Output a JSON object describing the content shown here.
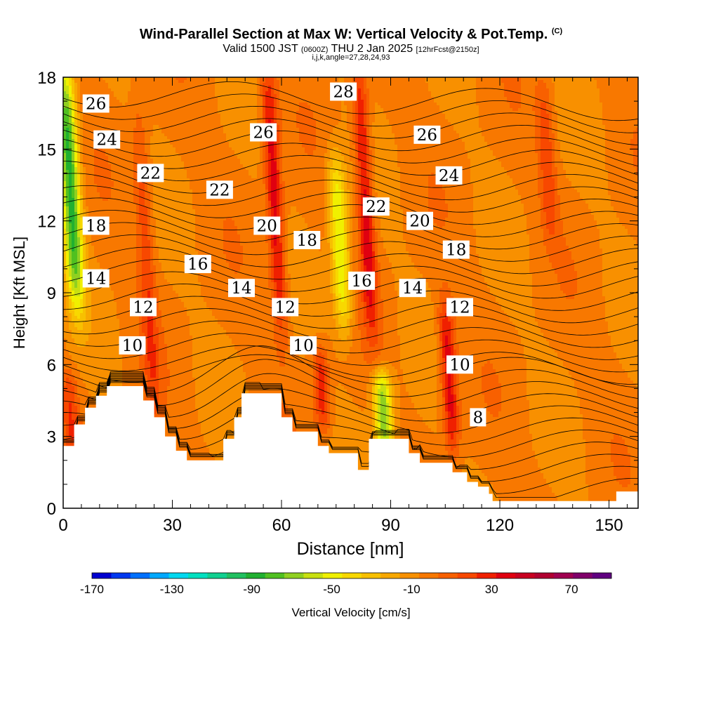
{
  "titles": {
    "main": "Wind-Parallel Section at Max W: Vertical Velocity & Pot.Temp.",
    "main_tag": "(C)",
    "valid_prefix": "Valid 1500 JST",
    "valid_zulu": "(0600Z)",
    "valid_date": "THU 2 Jan 2025",
    "forecast": "[12hrFcst@2150z]",
    "indices": "i,j,k,angle=27,28,24,93"
  },
  "chart_data": {
    "type": "heatmap",
    "title": "Wind-Parallel Section at Max W: Vertical Velocity & Pot.Temp.",
    "xlabel": "Distance [nm]",
    "ylabel": "Height [Kft MSL]",
    "xlim": [
      0,
      158
    ],
    "ylim": [
      0,
      18
    ],
    "xticks": [
      0,
      30,
      60,
      90,
      120,
      150
    ],
    "yticks": [
      0,
      3,
      6,
      9,
      12,
      15,
      18
    ],
    "colorbar": {
      "label": "Vertical Velocity [cm/s]",
      "tick_labels": [
        -170,
        -130,
        -90,
        -50,
        -10,
        30,
        70
      ],
      "bins": [
        -170,
        -160,
        -150,
        -140,
        -130,
        -120,
        -110,
        -100,
        -90,
        -80,
        -70,
        -60,
        -50,
        -40,
        -30,
        -20,
        -10,
        0,
        10,
        20,
        30,
        40,
        50,
        60,
        70,
        80,
        90
      ],
      "colors": [
        "#0000d0",
        "#0038f0",
        "#0070ff",
        "#00a8ff",
        "#00d8f0",
        "#00e0c0",
        "#10d090",
        "#20c060",
        "#20b030",
        "#50c020",
        "#90d020",
        "#c8e010",
        "#f0f000",
        "#f8d800",
        "#f8c000",
        "#f8a800",
        "#f89000",
        "#f87800",
        "#f86000",
        "#f84800",
        "#f02000",
        "#e00010",
        "#c80020",
        "#b00030",
        "#a00050",
        "#80006a",
        "#600080"
      ]
    },
    "contour_field": "Potential Temperature (C)",
    "contour_labels": [
      {
        "value": "26",
        "x": 9,
        "y": 16.9,
        "angle": 0
      },
      {
        "value": "24",
        "x": 12,
        "y": 15.4,
        "angle": 0
      },
      {
        "value": "22",
        "x": 24,
        "y": 14.0,
        "angle": 0
      },
      {
        "value": "22",
        "x": 43,
        "y": 13.3,
        "angle": 0
      },
      {
        "value": "26",
        "x": 55,
        "y": 15.7,
        "angle": 0
      },
      {
        "value": "28",
        "x": 77,
        "y": 17.4,
        "angle": 0
      },
      {
        "value": "26",
        "x": 100,
        "y": 15.6,
        "angle": 0
      },
      {
        "value": "24",
        "x": 106,
        "y": 13.9,
        "angle": 0
      },
      {
        "value": "22",
        "x": 86,
        "y": 12.6,
        "angle": 0
      },
      {
        "value": "20",
        "x": 56,
        "y": 11.8,
        "angle": 0
      },
      {
        "value": "20",
        "x": 98,
        "y": 12.0,
        "angle": 0
      },
      {
        "value": "18",
        "x": 9,
        "y": 11.8,
        "angle": 0
      },
      {
        "value": "18",
        "x": 67,
        "y": 11.2,
        "angle": 0
      },
      {
        "value": "18",
        "x": 108,
        "y": 10.8,
        "angle": 0
      },
      {
        "value": "16",
        "x": 37,
        "y": 10.2,
        "angle": 0
      },
      {
        "value": "16",
        "x": 82,
        "y": 9.5,
        "angle": 0
      },
      {
        "value": "14",
        "x": 9,
        "y": 9.6,
        "angle": 0
      },
      {
        "value": "14",
        "x": 49,
        "y": 9.2,
        "angle": 0
      },
      {
        "value": "14",
        "x": 96,
        "y": 9.2,
        "angle": 0
      },
      {
        "value": "12",
        "x": 22,
        "y": 8.4,
        "angle": 0
      },
      {
        "value": "12",
        "x": 61,
        "y": 8.4,
        "angle": 0
      },
      {
        "value": "12",
        "x": 109,
        "y": 8.4,
        "angle": 0
      },
      {
        "value": "10",
        "x": 19,
        "y": 6.8,
        "angle": 0
      },
      {
        "value": "10",
        "x": 66,
        "y": 6.8,
        "angle": 0
      },
      {
        "value": "10",
        "x": 109,
        "y": 6.0,
        "angle": 0
      },
      {
        "value": "8",
        "x": 114,
        "y": 3.8,
        "angle": 0
      }
    ],
    "velocity_features": [
      {
        "kind": "updraft",
        "x": 58,
        "y0": 8,
        "y1": 18,
        "peak_cm_s": 45
      },
      {
        "kind": "updraft",
        "x": 83,
        "y0": 8,
        "y1": 18,
        "peak_cm_s": 45
      },
      {
        "kind": "updraft",
        "x": 106,
        "y0": 3,
        "y1": 8,
        "peak_cm_s": 45
      },
      {
        "kind": "updraft",
        "x": 71,
        "y0": 4,
        "y1": 6,
        "peak_cm_s": 35
      },
      {
        "kind": "updraft",
        "x": 23,
        "y0": 4,
        "y1": 16,
        "peak_cm_s": 25
      },
      {
        "kind": "updraft",
        "x": 133,
        "y0": 12,
        "y1": 17,
        "peak_cm_s": 25
      },
      {
        "kind": "updraft",
        "x": 2,
        "y0": 3,
        "y1": 5,
        "peak_cm_s": 25
      },
      {
        "kind": "downdraft",
        "x": 2,
        "y0": 9,
        "y1": 18,
        "peak_cm_s": -85
      },
      {
        "kind": "downdraft",
        "x": 76,
        "y0": 8,
        "y1": 14,
        "peak_cm_s": -55
      },
      {
        "kind": "downdraft",
        "x": 88,
        "y0": 3,
        "y1": 5,
        "peak_cm_s": -70
      }
    ],
    "terrain_kft": [
      [
        0,
        2.6
      ],
      [
        3,
        3.5
      ],
      [
        6,
        4.2
      ],
      [
        9,
        4.7
      ],
      [
        12,
        5.1
      ],
      [
        20,
        5.1
      ],
      [
        22,
        4.5
      ],
      [
        25,
        3.8
      ],
      [
        28,
        3.0
      ],
      [
        31,
        2.4
      ],
      [
        34,
        2.0
      ],
      [
        40,
        2.0
      ],
      [
        43,
        2.0
      ],
      [
        44,
        2.9
      ],
      [
        47,
        3.8
      ],
      [
        49,
        4.8
      ],
      [
        58,
        4.8
      ],
      [
        60,
        3.8
      ],
      [
        63,
        3.2
      ],
      [
        67,
        3.2
      ],
      [
        70,
        2.6
      ],
      [
        73,
        2.3
      ],
      [
        78,
        2.3
      ],
      [
        81,
        1.6
      ],
      [
        84,
        1.6
      ],
      [
        84,
        2.9
      ],
      [
        92,
        2.9
      ],
      [
        95,
        2.3
      ],
      [
        98,
        1.9
      ],
      [
        105,
        1.9
      ],
      [
        107,
        1.5
      ],
      [
        111,
        1.1
      ],
      [
        114,
        0.9
      ],
      [
        117,
        0.6
      ],
      [
        118,
        0.3
      ],
      [
        142,
        0.3
      ],
      [
        152,
        0.7
      ],
      [
        158,
        0.7
      ]
    ]
  }
}
